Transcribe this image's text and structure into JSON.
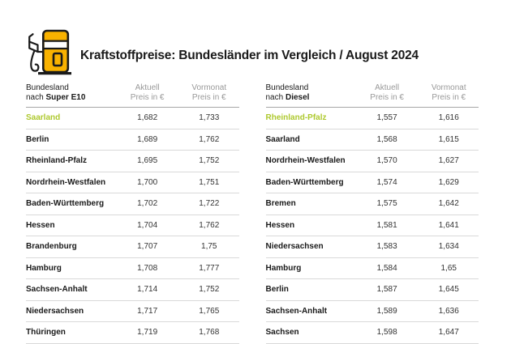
{
  "header": {
    "title": "Kraftstoffpreise: Bundesländer im Vergleich / August 2024",
    "icon": "fuel-pump-icon"
  },
  "colors": {
    "brand_yellow": "#F9B200",
    "highlight_green": "#AEC92E",
    "text_dark": "#1A1A1A",
    "muted_gray": "#999999",
    "header_rule": "#A6A6A6",
    "row_rule": "#D9D9D9"
  },
  "tables": [
    {
      "group_label_line1": "Bundesland",
      "group_label_nach": "nach ",
      "group_label_fuel": "Super E10",
      "aktuell_line1": "Aktuell",
      "aktuell_line2": "Preis in €",
      "vormonat_line1": "Vormonat",
      "vormonat_line2": "Preis in €"
    },
    {
      "group_label_line1": "Bundesland",
      "group_label_nach": "nach ",
      "group_label_fuel": "Diesel",
      "aktuell_line1": "Aktuell",
      "aktuell_line2": "Preis in €",
      "vormonat_line1": "Vormonat",
      "vormonat_line2": "Preis in €"
    }
  ],
  "chart_data": [
    {
      "type": "table",
      "title": "Bundesland nach Super E10",
      "fuel": "Super E10",
      "columns": [
        "Bundesland",
        "Aktuell Preis in €",
        "Vormonat Preis in €"
      ],
      "highlight_row": "Saarland",
      "rows": [
        [
          "Saarland",
          "1,682",
          "1,733"
        ],
        [
          "Berlin",
          "1,689",
          "1,762"
        ],
        [
          "Rheinland-Pfalz",
          "1,695",
          "1,752"
        ],
        [
          "Nordrhein-Westfalen",
          "1,700",
          "1,751"
        ],
        [
          "Baden-Württemberg",
          "1,702",
          "1,722"
        ],
        [
          "Hessen",
          "1,704",
          "1,762"
        ],
        [
          "Brandenburg",
          "1,707",
          "1,75"
        ],
        [
          "Hamburg",
          "1,708",
          "1,777"
        ],
        [
          "Sachsen-Anhalt",
          "1,714",
          "1,752"
        ],
        [
          "Niedersachsen",
          "1,717",
          "1,765"
        ],
        [
          "Thüringen",
          "1,719",
          "1,768"
        ]
      ]
    },
    {
      "type": "table",
      "title": "Bundesland nach Diesel",
      "fuel": "Diesel",
      "columns": [
        "Bundesland",
        "Aktuell Preis in €",
        "Vormonat Preis in €"
      ],
      "highlight_row": "Rheinland-Pfalz",
      "rows": [
        [
          "Rheinland-Pfalz",
          "1,557",
          "1,616"
        ],
        [
          "Saarland",
          "1,568",
          "1,615"
        ],
        [
          "Nordrhein-Westfalen",
          "1,570",
          "1,627"
        ],
        [
          "Baden-Württemberg",
          "1,574",
          "1,629"
        ],
        [
          "Bremen",
          "1,575",
          "1,642"
        ],
        [
          "Hessen",
          "1,581",
          "1,641"
        ],
        [
          "Niedersachsen",
          "1,583",
          "1,634"
        ],
        [
          "Hamburg",
          "1,584",
          "1,65"
        ],
        [
          "Berlin",
          "1,587",
          "1,645"
        ],
        [
          "Sachsen-Anhalt",
          "1,589",
          "1,636"
        ],
        [
          "Sachsen",
          "1,598",
          "1,647"
        ]
      ]
    }
  ]
}
